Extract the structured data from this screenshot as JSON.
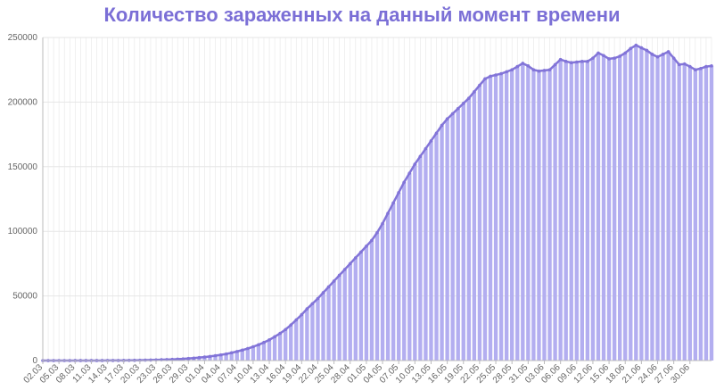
{
  "colors": {
    "title": "#7b6fd6",
    "bar_fill": "#b3aef0",
    "line": "#8274d8",
    "point": "#8274d8",
    "grid": "#e6e6e6",
    "axis": "#bbbbbb",
    "tick_text": "#666666"
  },
  "chart_data": {
    "type": "bar",
    "title": "Количество зараженных на данный момент времени",
    "xlabel": "",
    "ylabel": "",
    "ylim": [
      0,
      250000
    ],
    "y_ticks": [
      "0",
      "50000",
      "100000",
      "150000",
      "200000",
      "250000"
    ],
    "y_tick_values": [
      0,
      50000,
      100000,
      150000,
      200000,
      250000
    ],
    "x_tick_labels": [
      "02.03",
      "05.03",
      "08.03",
      "11.03",
      "14.03",
      "17.03",
      "20.03",
      "23.03",
      "26.03",
      "29.03",
      "01.04",
      "04.04",
      "07.04",
      "10.04",
      "13.04",
      "16.04",
      "19.04",
      "22.04",
      "25.04",
      "28.04",
      "01.05",
      "04.05",
      "07.05",
      "10.05",
      "13.05",
      "16.05",
      "19.05",
      "22.05",
      "25.05",
      "28.05",
      "31.05",
      "03.06",
      "06.06",
      "09.06",
      "12.06",
      "15.06",
      "18.06",
      "21.06",
      "24.06",
      "27.06",
      "30.06"
    ],
    "x_tick_every": 3,
    "grid": true,
    "overlay_line": true,
    "series": [
      {
        "values": [
          2,
          3,
          3,
          4,
          4,
          5,
          10,
          15,
          20,
          25,
          30,
          35,
          45,
          60,
          80,
          110,
          140,
          200,
          260,
          330,
          420,
          500,
          620,
          760,
          900,
          1100,
          1300,
          1600,
          1900,
          2300,
          2700,
          3200,
          3800,
          4400,
          5100,
          6000,
          7000,
          8100,
          9300,
          10700,
          12200,
          14000,
          16000,
          18400,
          21000,
          24000,
          27500,
          31500,
          35500,
          40000,
          44000,
          48000,
          52500,
          57000,
          61500,
          66000,
          70500,
          75000,
          79500,
          84000,
          88500,
          93000,
          99000,
          106000,
          114000,
          122000,
          130000,
          138000,
          145000,
          152000,
          158000,
          164000,
          170000,
          176000,
          182000,
          187000,
          191000,
          195000,
          199000,
          203000,
          208000,
          213000,
          218000,
          220000,
          221000,
          222000,
          223500,
          225000,
          227500,
          230000,
          228000,
          225000,
          224000,
          224500,
          225000,
          229000,
          233000,
          231500,
          230500,
          231000,
          231500,
          231500,
          234000,
          238000,
          236000,
          233500,
          234000,
          235500,
          238000,
          241500,
          244000,
          242000,
          240000,
          237000,
          235000,
          237000,
          239000,
          234000,
          229000,
          229500,
          227500,
          225000,
          226000,
          227500,
          228000
        ]
      }
    ]
  }
}
